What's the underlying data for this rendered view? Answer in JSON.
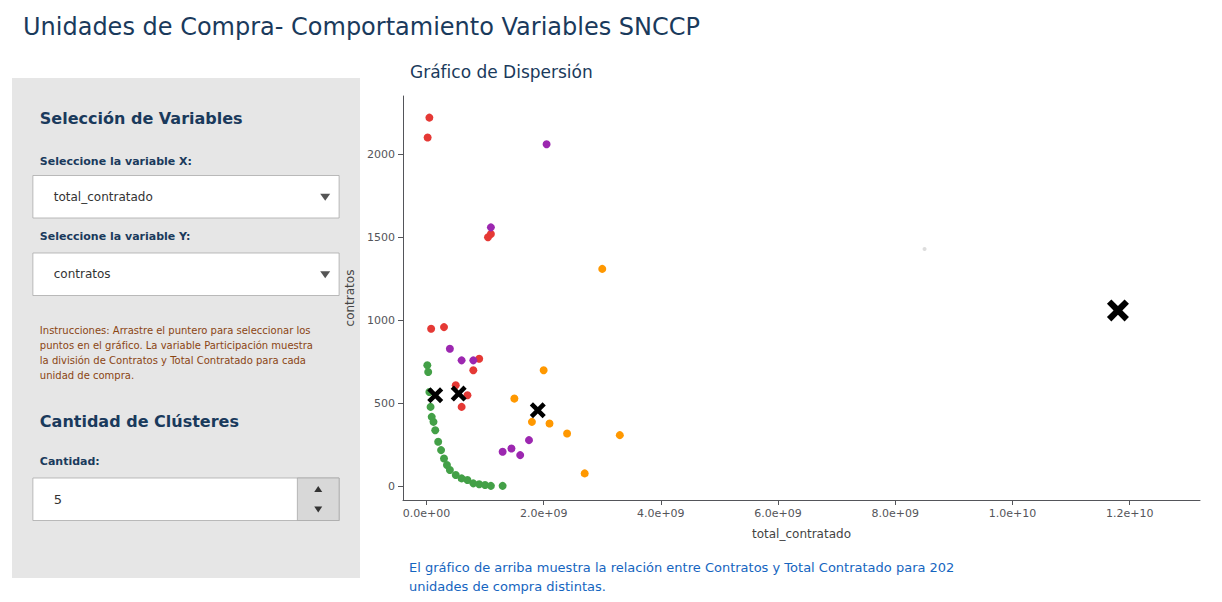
{
  "chart_data": {
    "type": "scatter",
    "title": "Unidades de Compra- Comportamiento Variables SNCCP",
    "subtitle": "Gráfico de Dispersión",
    "xlabel": "total_contratado",
    "ylabel": "contratos",
    "annotations": [
      "Selección de Variables",
      "Seleccione la variable X:",
      "total_contratado",
      "Seleccione la variable Y:",
      "contratos",
      "Instrucciones: Arrastre el puntero para seleccionar los\npuntos en el gráfico. La variable Participación muestra\nla división de Contratos y Total Contratado para cada\nunidad de compra.",
      "Cantidad de Clústeres",
      "Cantidad:",
      "5",
      "El gráfico de arriba muestra la relación entre Contratos y Total Contratado para 202\nunidades de compra distintas."
    ],
    "series": [
      {
        "color": "#e53935",
        "marker": "circle",
        "x": [
          20000000.0,
          50000000.0,
          80000000.0,
          300000000.0,
          500000000.0,
          600000000.0,
          700000000.0,
          800000000.0,
          900000000.0,
          1050000000.0,
          1100000000.0
        ],
        "values": [
          2100,
          2220,
          950,
          960,
          610,
          480,
          550,
          700,
          770,
          1500,
          1520
        ]
      },
      {
        "color": "#43a047",
        "marker": "circle",
        "x": [
          15000000.0,
          30000000.0,
          50000000.0,
          70000000.0,
          90000000.0,
          120000000.0,
          150000000.0,
          200000000.0,
          250000000.0,
          300000000.0,
          350000000.0,
          400000000.0,
          500000000.0,
          600000000.0,
          700000000.0,
          800000000.0,
          900000000.0,
          1000000000.0,
          1100000000.0,
          1300000000.0
        ],
        "values": [
          730,
          690,
          570,
          480,
          420,
          390,
          340,
          270,
          220,
          170,
          130,
          100,
          70,
          50,
          40,
          20,
          15,
          10,
          5,
          5
        ]
      },
      {
        "color": "#9c27b0",
        "marker": "circle",
        "x": [
          400000000.0,
          600000000.0,
          800000000.0,
          1100000000.0,
          1300000000.0,
          1450000000.0,
          1600000000.0,
          1750000000.0,
          2050000000.0
        ],
        "values": [
          830,
          760,
          760,
          1560,
          210,
          230,
          190,
          280,
          2060
        ]
      },
      {
        "color": "#ff9800",
        "marker": "circle",
        "x": [
          1500000000.0,
          1800000000.0,
          2000000000.0,
          2100000000.0,
          2400000000.0,
          2700000000.0,
          3000000000.0,
          3300000000.0
        ],
        "values": [
          530,
          390,
          700,
          380,
          320,
          80,
          1310,
          310
        ]
      },
      {
        "color": "#111111",
        "marker": "circle",
        "x": [
          11800000000.0
        ],
        "values": [
          1060
        ]
      },
      {
        "color": "#000000",
        "marker": "x",
        "x": [
          150000000.0,
          550000000.0,
          1900000000.0
        ],
        "values": [
          550,
          560,
          460
        ]
      },
      {
        "color": "#000000",
        "marker": "x",
        "x": [
          11800000000.0
        ],
        "values": [
          1060
        ]
      },
      {
        "color": "#bbbbbb",
        "marker": "circle",
        "x": [
          8500000000.0
        ],
        "values": [
          1430
        ]
      }
    ],
    "xlim": [
      -400000000.0,
      13200000000.0
    ],
    "ylim": [
      -80,
      2350
    ],
    "xticks": [
      {
        "value": 0,
        "label": "0.0e+00"
      },
      {
        "value": 2000000000.0,
        "label": "2.0e+09"
      },
      {
        "value": 4000000000.0,
        "label": "4.0e+09"
      },
      {
        "value": 6000000000.0,
        "label": "6.0e+09"
      },
      {
        "value": 8000000000.0,
        "label": "8.0e+09"
      },
      {
        "value": 10000000000.0,
        "label": "1.0e+10"
      },
      {
        "value": 12000000000.0,
        "label": "1.2e+10"
      }
    ],
    "yticks": [
      0,
      500,
      1000,
      1500,
      2000
    ],
    "grid": false
  }
}
